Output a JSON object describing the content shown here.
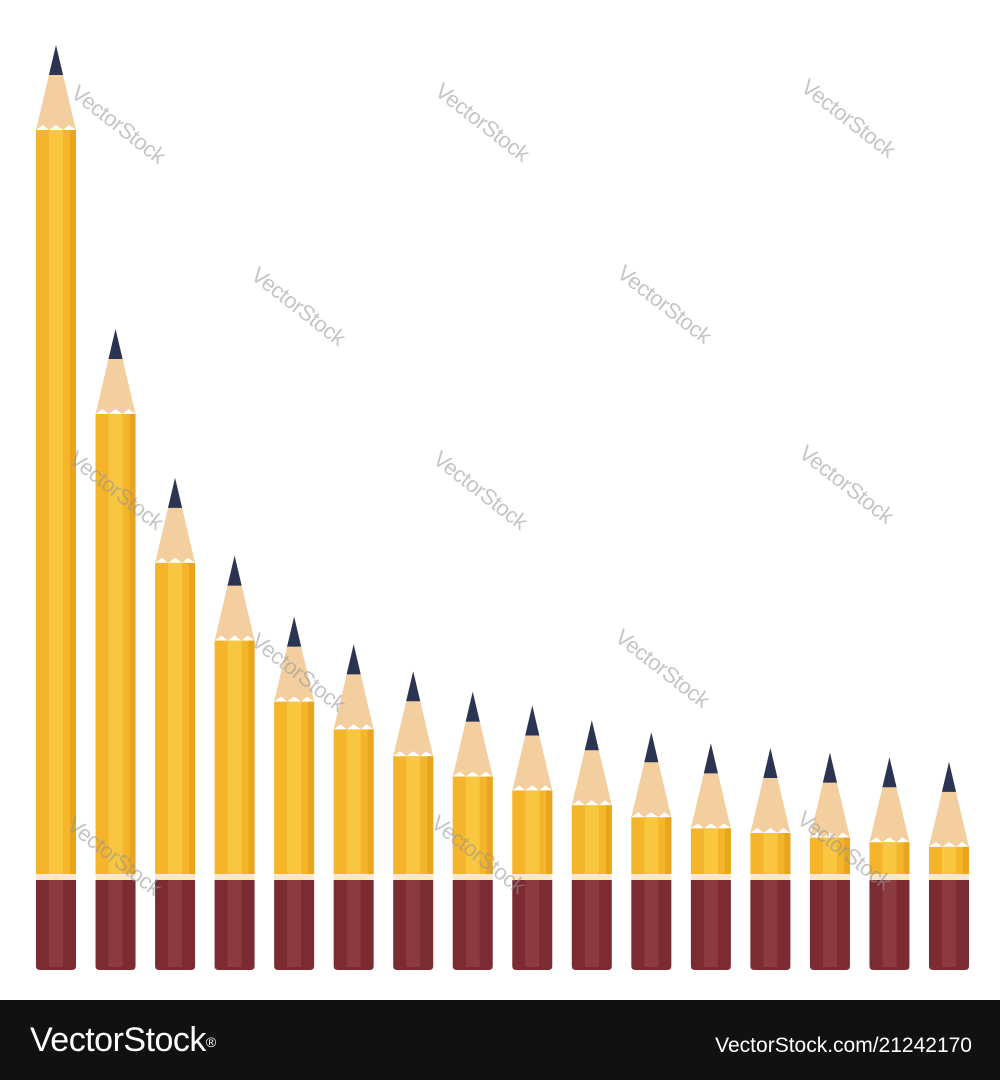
{
  "image": {
    "background": "#ffffff",
    "subject": "pencil-bar-chart",
    "pencil_count": 16,
    "pencil_relative_lengths": [
      1.0,
      0.693,
      0.532,
      0.448,
      0.382,
      0.352,
      0.323,
      0.301,
      0.286,
      0.27,
      0.257,
      0.245,
      0.24,
      0.235,
      0.23,
      0.225
    ],
    "colors": {
      "lead": "#2b3553",
      "wood": "#f3cf9f",
      "body_light": "#f9c640",
      "body_mid": "#f4b52a",
      "body_shadow": "#e9a51e",
      "ferrule_line": "#f6e7d0",
      "eraser": "#7c2b33",
      "eraser_light": "#8d3a3f"
    }
  },
  "watermark": {
    "text": "VectorStock"
  },
  "footer": {
    "logo_text": "VectorStock",
    "logo_mark": "®",
    "image_id": "VectorStock.com/21242170",
    "background": "#111111"
  }
}
